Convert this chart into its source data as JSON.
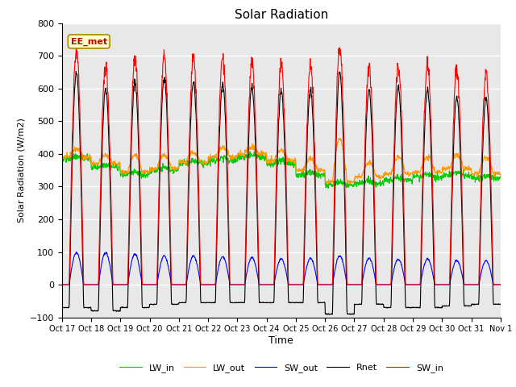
{
  "title": "Solar Radiation",
  "ylabel": "Solar Radiation (W/m2)",
  "xlabel": "Time",
  "ylim": [
    -100,
    800
  ],
  "yticks": [
    -100,
    0,
    100,
    200,
    300,
    400,
    500,
    600,
    700,
    800
  ],
  "x_tick_labels": [
    "Oct 17",
    "Oct 18",
    "Oct 19",
    "Oct 20",
    "Oct 21",
    "Oct 22",
    "Oct 23",
    "Oct 24",
    "Oct 25",
    "Oct 26",
    "Oct 27",
    "Oct 28",
    "Oct 29",
    "Oct 30",
    "Oct 31",
    "Nov 1"
  ],
  "annotation_text": "EE_met",
  "bg_color": "#e8e8e8",
  "colors": {
    "SW_in": "#ff0000",
    "SW_out": "#0000ff",
    "LW_in": "#00cc00",
    "LW_out": "#ff9900",
    "Rnet": "#000000"
  },
  "legend_labels": [
    "SW_in",
    "SW_out",
    "LW_in",
    "LW_out",
    "Rnet"
  ],
  "n_days": 15,
  "points_per_day": 96,
  "SW_in_peak": [
    720,
    670,
    690,
    700,
    700,
    695,
    685,
    670,
    670,
    725,
    670,
    675,
    670,
    655,
    650
  ],
  "SW_out_peak": [
    100,
    100,
    95,
    90,
    90,
    87,
    85,
    80,
    82,
    90,
    83,
    80,
    80,
    75,
    75
  ],
  "LW_in_base": [
    385,
    360,
    335,
    350,
    370,
    380,
    390,
    370,
    335,
    305,
    310,
    320,
    330,
    335,
    325
  ],
  "LW_out_base": [
    390,
    370,
    345,
    355,
    375,
    390,
    400,
    380,
    350,
    315,
    330,
    340,
    345,
    355,
    340
  ],
  "LW_out_peak": [
    415,
    395,
    395,
    395,
    405,
    420,
    420,
    410,
    385,
    445,
    375,
    390,
    390,
    395,
    390
  ],
  "Rnet_night": [
    -70,
    -80,
    -70,
    -60,
    -55,
    -55,
    -55,
    -55,
    -55,
    -90,
    -60,
    -70,
    -70,
    -65,
    -60
  ],
  "Rnet_peak": [
    650,
    600,
    620,
    630,
    620,
    615,
    605,
    595,
    595,
    650,
    595,
    605,
    595,
    575,
    570
  ]
}
